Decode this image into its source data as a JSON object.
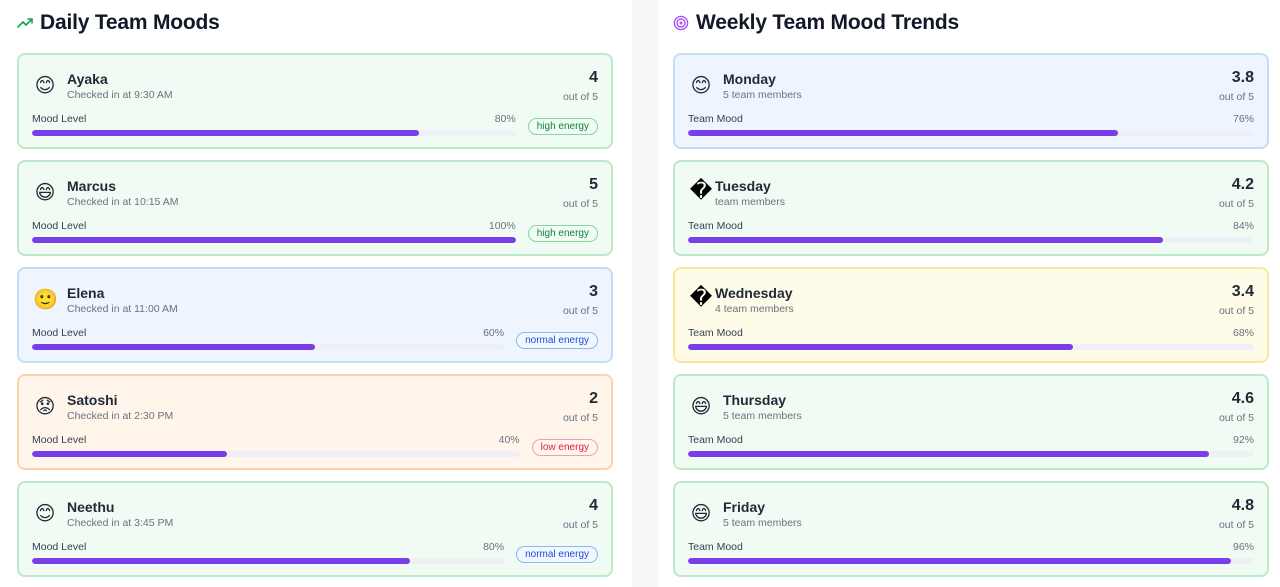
{
  "daily": {
    "title": "Daily Team Moods",
    "icon": "trending-up-icon",
    "mood_label": "Mood Level",
    "members": [
      {
        "name": "Ayaka",
        "checkin": "Checked in at 9:30 AM",
        "emoji": "😊",
        "score": "4",
        "out_of": "out of 5",
        "percent": "80%",
        "level": 0.8,
        "energy": "high energy",
        "energy_type": "high",
        "theme": "green"
      },
      {
        "name": "Marcus",
        "checkin": "Checked in at 10:15 AM",
        "emoji": "😄",
        "score": "5",
        "out_of": "out of 5",
        "percent": "100%",
        "level": 1.0,
        "energy": "high energy",
        "energy_type": "high",
        "theme": "green"
      },
      {
        "name": "Elena",
        "checkin": "Checked in at 11:00 AM",
        "emoji": "🙂",
        "score": "3",
        "out_of": "out of 5",
        "percent": "60%",
        "level": 0.6,
        "energy": "normal energy",
        "energy_type": "normal",
        "theme": "blue"
      },
      {
        "name": "Satoshi",
        "checkin": "Checked in at 2:30 PM",
        "emoji": "😟",
        "score": "2",
        "out_of": "out of 5",
        "percent": "40%",
        "level": 0.4,
        "energy": "low energy",
        "energy_type": "low",
        "theme": "orange"
      },
      {
        "name": "Neethu",
        "checkin": "Checked in at 3:45 PM",
        "emoji": "😊",
        "score": "4",
        "out_of": "out of 5",
        "percent": "80%",
        "level": 0.8,
        "energy": "normal energy",
        "energy_type": "normal",
        "theme": "green"
      }
    ]
  },
  "weekly": {
    "title": "Weekly Team Mood Trends",
    "icon": "target-icon",
    "mood_label": "Team Mood",
    "days": [
      {
        "day": "Monday",
        "members": "5 team members",
        "emoji": "😊",
        "score": "3.8",
        "out_of": "out of 5",
        "percent": "76%",
        "level": 0.76,
        "theme": "blue"
      },
      {
        "day": "Tuesday",
        "members": "team members",
        "emoji": "�",
        "score": "4.2",
        "out_of": "out of 5",
        "percent": "84%",
        "level": 0.84,
        "theme": "green"
      },
      {
        "day": "Wednesday",
        "members": "4 team members",
        "emoji": "�",
        "score": "3.4",
        "out_of": "out of 5",
        "percent": "68%",
        "level": 0.68,
        "theme": "yellow"
      },
      {
        "day": "Thursday",
        "members": "5 team members",
        "emoji": "😄",
        "score": "4.6",
        "out_of": "out of 5",
        "percent": "92%",
        "level": 0.92,
        "theme": "green"
      },
      {
        "day": "Friday",
        "members": "5 team members",
        "emoji": "😄",
        "score": "4.8",
        "out_of": "out of 5",
        "percent": "96%",
        "level": 0.96,
        "theme": "green"
      }
    ]
  },
  "colors": {
    "accent": "#7a3ee8",
    "trend_icon": "#16a34a",
    "target_icon": "#a855f7"
  }
}
